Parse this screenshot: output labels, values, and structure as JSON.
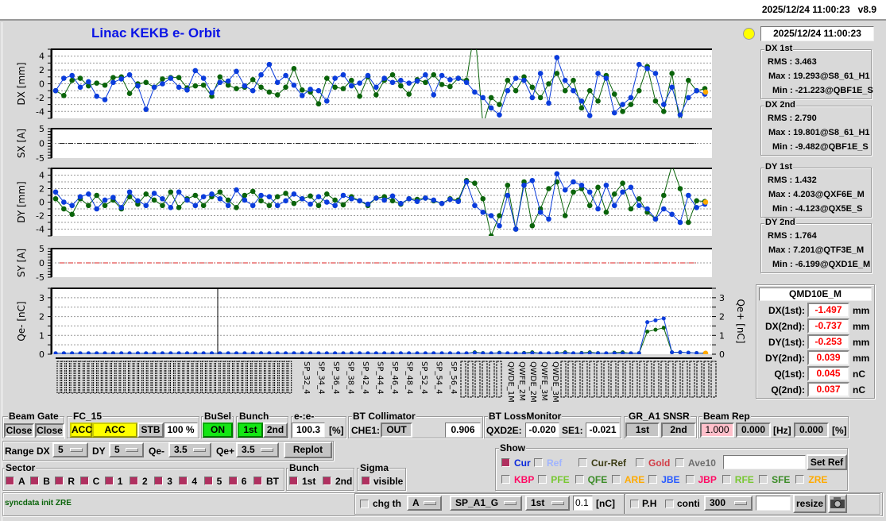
{
  "header": {
    "timestamp": "2025/12/24 11:00:23",
    "version": "v8.9"
  },
  "title": "Linac KEKB e- Orbit",
  "status_lamp_color": "#ffff00",
  "timestamp_box": "2025/12/24 11:00:23",
  "colors": {
    "first": "#0a3cdc",
    "second": "#0a640a",
    "zre": "#ffaa00"
  },
  "stats": [
    {
      "title": "DX 1st",
      "rms": "RMS :  3.463",
      "max": "Max :  19.293@S8_61_H1",
      "min": "Min :  -21.223@QBF1E_S"
    },
    {
      "title": "DX 2nd",
      "rms": "RMS :  2.790",
      "max": "Max :  19.801@S8_61_H1",
      "min": "Min :  -9.482@QBF1E_S"
    },
    {
      "title": "DY 1st",
      "rms": "RMS :  1.432",
      "max": "Max :  4.203@QXF6E_M",
      "min": "Min :  -4.123@QX5E_S"
    },
    {
      "title": "DY 2nd",
      "rms": "RMS :  1.764",
      "max": "Max :  7.201@QTF3E_M",
      "min": "Min :  -6.199@QXD1E_M"
    }
  ],
  "point_info": {
    "name": "QMD10E_M",
    "rows": [
      {
        "label": "DX(1st):",
        "value": "-1.497",
        "unit": "mm"
      },
      {
        "label": "DX(2nd):",
        "value": "-0.737",
        "unit": "mm"
      },
      {
        "label": "DY(1st):",
        "value": "-0.253",
        "unit": "mm"
      },
      {
        "label": "DY(2nd):",
        "value": "0.039",
        "unit": "mm"
      },
      {
        "label": "Q(1st):",
        "value": "0.045",
        "unit": "nC"
      },
      {
        "label": "Q(2nd):",
        "value": "0.037",
        "unit": "nC"
      }
    ]
  },
  "chart_data": [
    {
      "type": "line",
      "ylabel": "DX [mm]",
      "ylim": [
        -5,
        5
      ],
      "yticks": [
        "4",
        "2",
        "0",
        "-2",
        "-4"
      ],
      "grid": true,
      "series": [
        {
          "values": [
            -1,
            0.8,
            1.2,
            -0.5,
            0.3,
            -1.8,
            -2.3,
            0.2,
            0.7,
            1.3,
            -0.3,
            -3.7,
            -0.5,
            0,
            0.8,
            -0.5,
            -0.9,
            1.9,
            0.8,
            -1.3,
            0.2,
            0.4,
            1.8,
            -0.3,
            -1,
            1.3,
            2.8,
            0.2,
            1.2,
            -0.2,
            -1.7,
            -0.8,
            -1,
            -2.5,
            0.8,
            1.3,
            -0.3,
            0.1,
            1.2,
            -0.5,
            0.8,
            0.2,
            0.5,
            0.1,
            0.4,
            1.3,
            -1.6,
            1.2,
            0.6,
            0.8,
            0.2,
            -1.2,
            -2,
            -3.5,
            -4.5,
            -1,
            0.8,
            0.5,
            -2,
            1.5,
            -2.8,
            3.8,
            0.5,
            -1,
            -2.5,
            -4.6,
            1.5,
            0.8,
            -4.2,
            -3,
            -2,
            2.8,
            2.2,
            1.5,
            -3,
            -0.5,
            -4.5,
            -2,
            -1,
            -1.5
          ]
        },
        {
          "values": [
            -1,
            -1.7,
            0.5,
            0.8,
            -0.3,
            0.1,
            -0.2,
            0.9,
            1,
            -1.4,
            0,
            0.2,
            -0.5,
            0.7,
            0.9,
            0.9,
            -0.6,
            -0.3,
            -0.2,
            -1.8,
            1,
            -0.2,
            -0.7,
            -0.5,
            0.6,
            -0.5,
            -1.2,
            -1.6,
            -0.5,
            2.2,
            -0.9,
            -1.2,
            -2.9,
            0.8,
            -0.5,
            -0.7,
            0.5,
            -1.8,
            1,
            -1.6,
            0.5,
            1.3,
            -0.3,
            -1.5,
            0.6,
            0.2,
            1.3,
            -0.1,
            -0.4,
            0.8,
            0.5,
            8,
            -6,
            -2,
            -3,
            0.5,
            -1,
            1,
            -0.5,
            -2,
            0,
            1.5,
            -1,
            0.5,
            -3.5,
            -1,
            -2.5,
            1.2,
            -1.5,
            -4,
            -3,
            -1,
            2.5,
            -2.5,
            -4,
            1.5,
            -6,
            0.5,
            -1,
            -0.7
          ]
        }
      ]
    },
    {
      "type": "line",
      "ylabel": "SX [A]",
      "ylim": [
        -5,
        5
      ],
      "yticks": [
        "5",
        "0",
        "-5"
      ],
      "grid": true,
      "series": []
    },
    {
      "type": "line",
      "ylabel": "DY [mm]",
      "ylim": [
        -5,
        5
      ],
      "yticks": [
        "4",
        "2",
        "0",
        "-2",
        "-4"
      ],
      "grid": true,
      "series": [
        {
          "values": [
            1.5,
            0,
            -0.5,
            0.8,
            1.2,
            -1,
            0.3,
            0.7,
            -0.8,
            1.5,
            0.2,
            -0.5,
            1.3,
            0.5,
            -0.8,
            1.5,
            0.3,
            -0.5,
            0.8,
            1.2,
            0.5,
            -0.5,
            1.8,
            0.3,
            -0.5,
            1,
            0.8,
            -0.5,
            0.2,
            1.2,
            0.5,
            -0.3,
            0.8,
            0,
            -0.5,
            1,
            0.5,
            0.2,
            -0.3,
            0.6,
            0.3,
            0.9,
            -0.2,
            0.5,
            0.1,
            0.6,
            0.3,
            -0.2,
            0.4,
            0.1,
            3,
            -0.5,
            -1.5,
            -2,
            -3.5,
            1,
            -4,
            2.5,
            3.2,
            -1.5,
            -2.5,
            4.2,
            1.8,
            3,
            2.5,
            1.5,
            -1,
            2.5,
            -0.5,
            1.5,
            2.2,
            -0.5,
            -1,
            -2.5,
            -1,
            -1.8,
            -3,
            1,
            -0.8,
            -0.3
          ]
        },
        {
          "values": [
            0.5,
            -1,
            -1.8,
            0.5,
            -0.5,
            1,
            -0.5,
            0.3,
            -1,
            0.8,
            -0.3,
            1.2,
            0.3,
            -0.5,
            1.5,
            -0.8,
            0.5,
            1,
            -0.5,
            0.8,
            1.5,
            0.3,
            -0.8,
            1,
            1.6,
            0.2,
            -0.5,
            0.8,
            1.3,
            -0.2,
            0.5,
            0.9,
            -0.5,
            1.2,
            0.3,
            -0.4,
            0.8,
            0.2,
            -0.5,
            0.6,
            0.8,
            0.2,
            -0.3,
            0.5,
            0.4,
            0.6,
            0.2,
            -0.2,
            0.5,
            0.3,
            3.2,
            2.8,
            0.5,
            -5,
            -2,
            2.5,
            -4,
            3,
            -3.5,
            -1,
            2,
            3,
            -2,
            1.5,
            2,
            -0.5,
            2.2,
            -1.5,
            1.2,
            2.8,
            -1,
            0.5,
            -1.5,
            -2.5,
            1,
            5.5,
            2,
            -3,
            0.2,
            0.1
          ]
        }
      ]
    },
    {
      "type": "line",
      "ylabel": "SY [A]",
      "ylim": [
        -5,
        5
      ],
      "yticks": [
        "5",
        "0",
        "-5"
      ],
      "grid": true,
      "series": []
    },
    {
      "type": "line",
      "ylabel": "Qe- [nC]",
      "y2label": "Qe+ [nC]",
      "ylim": [
        0,
        3.5
      ],
      "yticks": [
        "3",
        "2",
        "1",
        "0"
      ],
      "grid": true,
      "series": [
        {
          "values": [
            0.05,
            0.05,
            0.05,
            0.05,
            0.05,
            0.05,
            0.05,
            0.05,
            0.05,
            0.05,
            0.05,
            0.05,
            0.05,
            0.05,
            0.05,
            0.05,
            0.05,
            0.05,
            0.05,
            0.05,
            0.05,
            0.05,
            0.05,
            0.05,
            0.05,
            0.05,
            0.05,
            0.05,
            0.05,
            0.05,
            0.05,
            0.05,
            0.05,
            0.05,
            0.05,
            0.05,
            0.05,
            0.05,
            0.05,
            0.05,
            0.05,
            0.05,
            0.05,
            0.05,
            0.05,
            0.05,
            0.05,
            0.05,
            0.05,
            0.05,
            0.05,
            0.07,
            0.05,
            0.05,
            0.06,
            0.05,
            0.05,
            0.05,
            0.06,
            0.05,
            0.05,
            0.05,
            0.06,
            0.05,
            0.05,
            0.06,
            0.05,
            0.05,
            0.05,
            0.05,
            0.05,
            0.05,
            1.7,
            1.8,
            1.9,
            0.1,
            0.1,
            0.08,
            0.06,
            0.05
          ]
        },
        {
          "values": [
            0.05,
            0.05,
            0.05,
            0.05,
            0.05,
            0.05,
            0.05,
            0.05,
            0.05,
            0.05,
            0.05,
            0.05,
            0.05,
            0.05,
            0.05,
            0.05,
            0.05,
            0.05,
            0.05,
            0.05,
            0.05,
            0.05,
            0.05,
            0.05,
            0.05,
            0.05,
            0.05,
            0.05,
            0.05,
            0.05,
            0.05,
            0.05,
            0.05,
            0.05,
            0.05,
            0.05,
            0.05,
            0.05,
            0.05,
            0.05,
            0.05,
            0.05,
            0.05,
            0.05,
            0.05,
            0.05,
            0.05,
            0.05,
            0.05,
            0.05,
            0.05,
            0.1,
            0.06,
            0.05,
            0.08,
            0.05,
            0.05,
            0.07,
            0.1,
            0.05,
            0.05,
            0.06,
            0.1,
            0.05,
            0.07,
            0.1,
            0.06,
            0.05,
            0.08,
            0.1,
            0.05,
            0.06,
            1.2,
            1.3,
            1.4,
            0.1,
            0.1,
            0.08,
            0.06,
            0.05
          ]
        }
      ]
    }
  ],
  "bpm_labels": [
    "SP_32_4",
    "SP_34_4",
    "SP_36_4",
    "SP_38_4",
    "SP_42_4",
    "SP_44_4",
    "SP_46_4",
    "SP_48_4",
    "SP_52_4",
    "SP_54_4",
    "SP_56_4",
    "QWDE_1M",
    "QWFE_2M",
    "QWDE_2M",
    "QWFE_3M",
    "QWDE_3M"
  ],
  "controls": {
    "beam_gate": {
      "title": "Beam Gate",
      "b1": "Close",
      "b2": "Close"
    },
    "fc15": {
      "title": "FC_15",
      "acc1": "ACC",
      "acc2": "ACC",
      "stb": "STB",
      "pct": "100 %"
    },
    "busel": {
      "title": "BuSel",
      "on": "ON"
    },
    "bunch": {
      "title": "Bunch",
      "first": "1st",
      "second": "2nd"
    },
    "ee": {
      "title": "e-:e-",
      "value": "100.3",
      "unit": "[%]"
    },
    "bt_coll": {
      "title": "BT Collimator",
      "label": "CHE1:",
      "state": "OUT",
      "value": "0.906"
    },
    "bt_loss": {
      "title": "BT LossMonitor",
      "l1": "QXD2E:",
      "v1": "-0.020",
      "l2": "SE1:",
      "v2": "-0.021"
    },
    "gr": {
      "title": "GR_A1  SNSR",
      "first": "1st",
      "second": "2nd"
    },
    "beam_rep": {
      "title": "Beam Rep",
      "v1": "1.000",
      "v2": "0.000",
      "u1": "[Hz]",
      "v3": "0.000",
      "u2": "[%]"
    },
    "range": {
      "label": "Range",
      "dx": "DX",
      "dx_val": "5",
      "dy": "DY",
      "dy_val": "5",
      "qem": "Qe-",
      "qem_val": "3.5",
      "qep": "Qe+",
      "qep_val": "3.5",
      "replot": "Replot"
    },
    "sector": {
      "title": "Sector",
      "items": [
        "A",
        "B",
        "R",
        "C",
        "1",
        "2",
        "3",
        "4",
        "5",
        "6",
        "BT"
      ]
    },
    "bunch2": {
      "title": "Bunch",
      "first": "1st",
      "second": "2nd"
    },
    "sigma": {
      "title": "Sigma",
      "visible": "visible"
    },
    "show": {
      "title": "Show",
      "row1": [
        {
          "t": "Cur",
          "c": "#0a28dc",
          "on": true
        },
        {
          "t": "Ref",
          "c": "#a0b4ff"
        },
        {
          "t": "Cur-Ref",
          "c": "#3c3c14"
        },
        {
          "t": "Gold",
          "c": "#d23c46"
        },
        {
          "t": "Ave10",
          "c": "#6e6e6e"
        }
      ],
      "row2": [
        {
          "t": "KBP",
          "c": "#ff0a64"
        },
        {
          "t": "PFE",
          "c": "#78c832"
        },
        {
          "t": "QFE",
          "c": "#3c8c28"
        },
        {
          "t": "ARE",
          "c": "#ffaa00"
        },
        {
          "t": "JBE",
          "c": "#285aff"
        },
        {
          "t": "JBP",
          "c": "#ff0a64"
        },
        {
          "t": "RFE",
          "c": "#78c832"
        },
        {
          "t": "SFE",
          "c": "#3c8c28"
        },
        {
          "t": "ZRE",
          "c": "#ffaa00"
        }
      ],
      "input": "",
      "set_ref": "Set Ref"
    },
    "status": "syncdata init ZRE",
    "chg": {
      "label": "chg th",
      "sel": "A",
      "bpm": "SP_A1_G",
      "bunch": "1st",
      "thr": "0.1",
      "unit": "[nC]"
    },
    "ph": {
      "ph": "P.H",
      "conti": "conti",
      "count": "300",
      "input": "",
      "resize": "resize"
    }
  }
}
